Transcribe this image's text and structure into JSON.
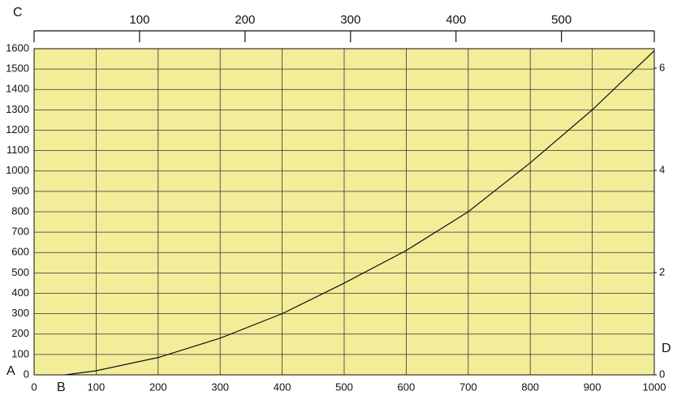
{
  "chart_data": {
    "type": "line",
    "annotations": [
      "A",
      "B",
      "C",
      "D"
    ],
    "x": [
      50,
      100,
      200,
      300,
      400,
      500,
      600,
      700,
      800,
      900,
      1000
    ],
    "series": [
      {
        "color": "#111111",
        "values": [
          0,
          20,
          85,
          180,
          300,
          450,
          610,
          800,
          1040,
          1300,
          1590
        ]
      }
    ],
    "xlim": [
      0,
      1000
    ],
    "xticks": [
      0,
      100,
      200,
      300,
      400,
      500,
      600,
      700,
      800,
      900,
      1000
    ],
    "ylim": [
      0,
      1600
    ],
    "yticks": [
      0,
      100,
      200,
      300,
      400,
      500,
      600,
      700,
      800,
      900,
      1000,
      1100,
      1200,
      1300,
      1400,
      1500,
      1600
    ],
    "x2lim": [
      0,
      588
    ],
    "x2ticks": [
      100,
      200,
      300,
      400,
      500
    ],
    "y2lim": [
      0,
      6.38
    ],
    "y2ticks": [
      0,
      2,
      4,
      6
    ],
    "grid": true,
    "background": "#f3ed9a"
  }
}
